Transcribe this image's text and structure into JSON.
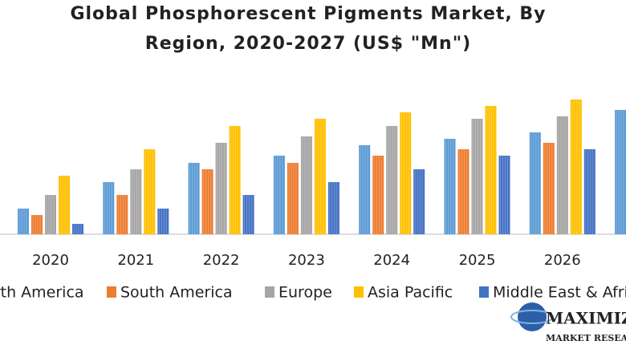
{
  "chart_data": {
    "type": "bar",
    "title_lines": [
      "Global Phosphorescent Pigments Market, By",
      "Region, 2020-2027 (US$ \"Mn\")"
    ],
    "categories": [
      "2020",
      "2021",
      "2022",
      "2023",
      "2024",
      "2025",
      "2026",
      null
    ],
    "series": [
      {
        "name": "North America",
        "color": "#5b9bd5",
        "values": [
          32,
          65,
          89,
          98,
          111,
          119,
          127,
          155
        ]
      },
      {
        "name": "South America",
        "color": "#ed7d31",
        "values": [
          24,
          49,
          81,
          89,
          98,
          106,
          114,
          null
        ]
      },
      {
        "name": "Europe",
        "color": "#a5a5a5",
        "values": [
          49,
          81,
          114,
          122,
          135,
          144,
          147,
          null
        ]
      },
      {
        "name": "Asia Pacific",
        "color": "#ffc000",
        "values": [
          73,
          106,
          135,
          144,
          152,
          160,
          168,
          null
        ]
      },
      {
        "name": "Middle East & Africa",
        "color": "#4472c4",
        "values": [
          13,
          32,
          49,
          65,
          81,
          98,
          106,
          null
        ]
      }
    ],
    "ylim": [
      0,
      180
    ],
    "logo": [
      "MAXIMIZE",
      "MARKET RESEARCH"
    ]
  }
}
